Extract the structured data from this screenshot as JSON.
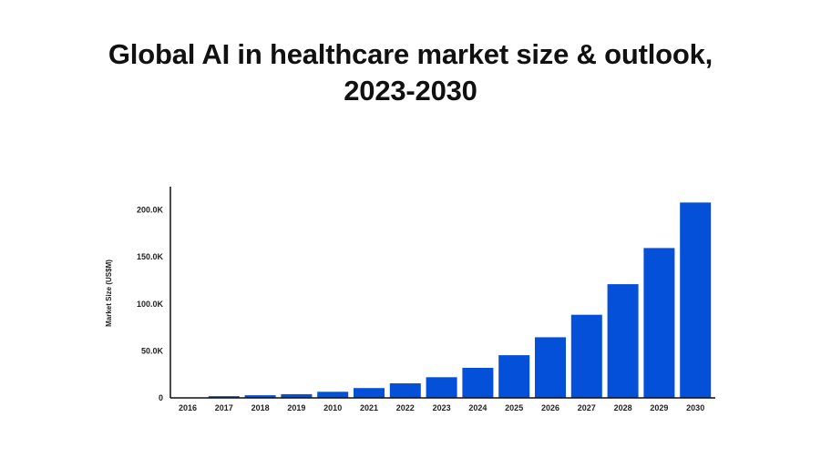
{
  "chart_data": {
    "type": "bar",
    "title_lines": [
      "Global AI in healthcare market size & outlook,",
      "2023-2030"
    ],
    "xlabel": "",
    "ylabel": "Market Size (US$M)",
    "categories": [
      "2016",
      "2017",
      "2018",
      "2019",
      "2010",
      "2021",
      "2022",
      "2023",
      "2024",
      "2025",
      "2026",
      "2027",
      "2028",
      "2029",
      "2030"
    ],
    "values": [
      500,
      1800,
      2800,
      4000,
      6500,
      10500,
      15500,
      22000,
      32000,
      45500,
      64500,
      88500,
      121000,
      159500,
      208000
    ],
    "ylim": [
      0,
      220000
    ],
    "yticks": [
      0,
      50000,
      100000,
      150000,
      200000
    ],
    "ytick_labels": [
      "0",
      "50.0K",
      "100.0K",
      "150.0K",
      "200.0K"
    ],
    "bar_color": "#0550d8",
    "axis_color": "#111111",
    "grid": false,
    "legend": "none"
  }
}
